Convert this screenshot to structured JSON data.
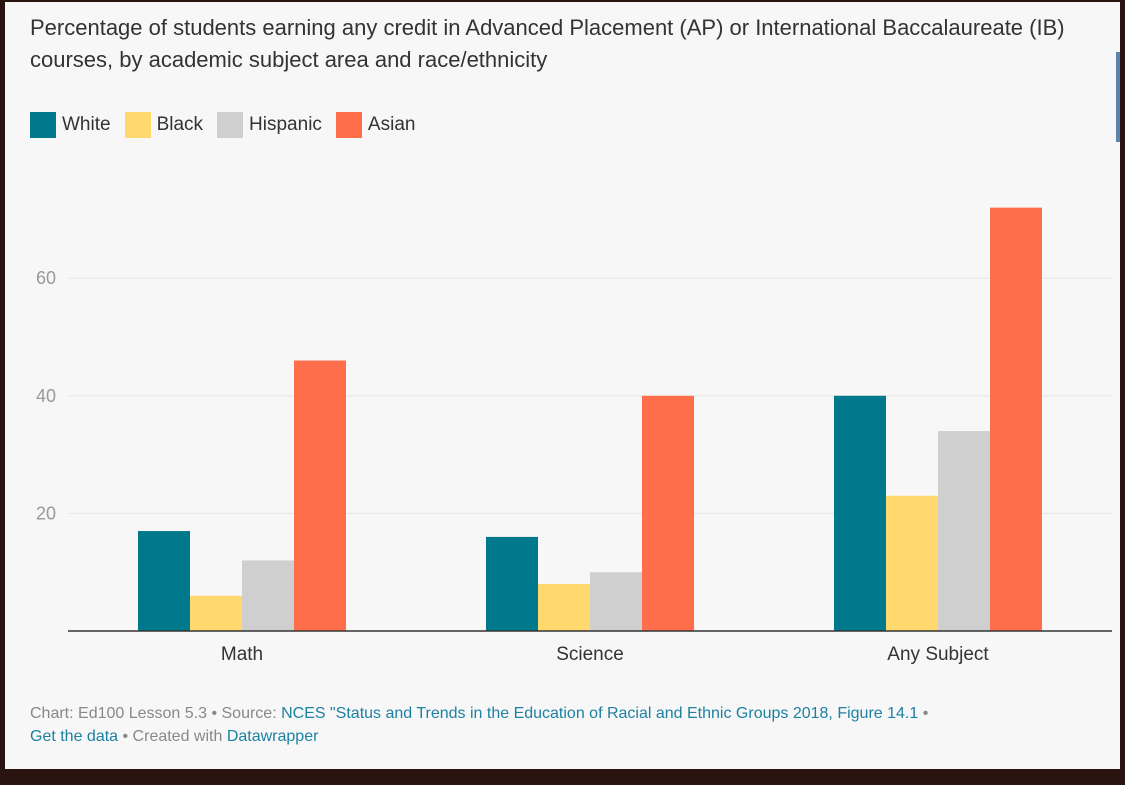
{
  "title": "Percentage of students earning any credit in Advanced Placement (AP) or International Baccalaureate (IB) courses, by academic subject area and race/ethnicity",
  "colors": {
    "White": "#00798c",
    "Black": "#ffd96e",
    "Hispanic": "#cfcfcf",
    "Asian": "#ff6e4a"
  },
  "chart_data": {
    "type": "bar",
    "categories": [
      "Math",
      "Science",
      "Any Subject"
    ],
    "series": [
      {
        "name": "White",
        "values": [
          17,
          16,
          40
        ]
      },
      {
        "name": "Black",
        "values": [
          6,
          8,
          23
        ]
      },
      {
        "name": "Hispanic",
        "values": [
          12,
          10,
          34
        ]
      },
      {
        "name": "Asian",
        "values": [
          46,
          40,
          72
        ]
      }
    ],
    "y_ticks": [
      "20",
      "40",
      "60"
    ],
    "ylim": [
      0,
      75
    ],
    "grid": true,
    "legend": "top-left"
  },
  "footer": {
    "prefix": "Chart: Ed100 Lesson 5.3 • Source: ",
    "source_link": "NCES \"Status and Trends in the Education of Racial and Ethnic Groups 2018, Figure 14.1",
    "sep1": " •",
    "get_data_link": "Get the data",
    "sep2": " • Created with ",
    "datawrapper_link": "Datawrapper"
  }
}
